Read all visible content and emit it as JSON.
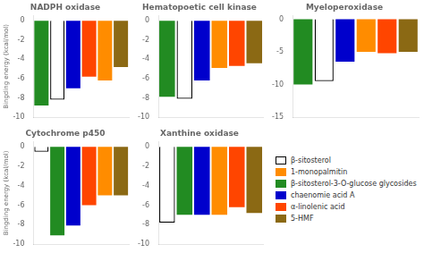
{
  "chart_data": [
    {
      "type": "bar",
      "title": "NADPH oxidase",
      "ylabel": "Bingding energy (kcal/mol)",
      "categories": [
        null,
        null,
        null,
        null,
        null,
        null
      ],
      "values": [
        -8.8,
        -8.2,
        -7.0,
        -5.8,
        -6.2,
        -4.8
      ],
      "colors": [
        "#228B22",
        "#FFFFFF",
        "#0000CC",
        "#FF4500",
        "#FF8C00",
        "#8B6914"
      ],
      "ylim": [
        -10,
        0.5
      ],
      "yticks": [
        0,
        -2,
        -4,
        -6,
        -8,
        -10
      ],
      "grid": false,
      "tick_labels": "y"
    },
    {
      "type": "bar",
      "title": "Hematopoetic cell kinase",
      "categories": [
        null,
        null,
        null,
        null,
        null,
        null
      ],
      "values": [
        -7.9,
        -8.1,
        -6.2,
        -4.9,
        -4.7,
        -4.4
      ],
      "colors": [
        "#228B22",
        "#FFFFFF",
        "#0000CC",
        "#FF8C00",
        "#FF4500",
        "#8B6914"
      ],
      "ylim": [
        -10,
        0.5
      ],
      "yticks": [
        0,
        -2,
        -4,
        -6,
        -8,
        -10
      ],
      "grid": false,
      "tick_labels": "y"
    },
    {
      "type": "bar",
      "title": "Myeloperoxidase",
      "categories": [
        null,
        null,
        null,
        null,
        null,
        null
      ],
      "values": [
        -10.0,
        -9.5,
        -6.5,
        -5.0,
        -5.2,
        -5.0
      ],
      "colors": [
        "#228B22",
        "#FFFFFF",
        "#0000CC",
        "#FF8C00",
        "#FF4500",
        "#8B6914"
      ],
      "ylim": [
        -15,
        0.5
      ],
      "yticks": [
        0,
        -5,
        -10,
        -15
      ],
      "grid": false,
      "tick_labels": "y"
    },
    {
      "type": "bar",
      "title": "Cytochrome p450",
      "ylabel": "Bingding energy (kcal/mol)",
      "categories": [
        null,
        null,
        null,
        null,
        null,
        null
      ],
      "values": [
        -0.5,
        -9.1,
        -8.1,
        -6.0,
        -5.0,
        -5.0
      ],
      "colors": [
        "#FFFFFF",
        "#228B22",
        "#0000CC",
        "#FF4500",
        "#FF8C00",
        "#8B6914"
      ],
      "ylim": [
        -10,
        0.5
      ],
      "yticks": [
        0,
        -2,
        -4,
        -6,
        -8,
        -10
      ],
      "grid": false,
      "tick_labels": "y"
    },
    {
      "type": "bar",
      "title": "Xanthine oxidase",
      "categories": [
        null,
        null,
        null,
        null,
        null,
        null
      ],
      "values": [
        -7.8,
        -7.0,
        -7.0,
        -7.0,
        -6.2,
        -6.8
      ],
      "colors": [
        "#FFFFFF",
        "#228B22",
        "#0000CC",
        "#FF8C00",
        "#FF4500",
        "#8B6914"
      ],
      "ylim": [
        -10,
        0.5
      ],
      "yticks": [
        0,
        -2,
        -4,
        -6,
        -8,
        -10
      ],
      "grid": false,
      "tick_labels": "y"
    },
    {
      "type": "legend",
      "legend": "bottom right",
      "series": [
        {
          "name": "β-sitosterol",
          "color": "#FFFFFF"
        },
        {
          "name": "1-monopalmitin",
          "color": "#FF8C00"
        },
        {
          "name": "β-sitosterol-3-O-glucose glycosides",
          "color": "#228B22"
        },
        {
          "name": "chaenomie acid A",
          "color": "#0000CC"
        },
        {
          "name": "α-linolenic acid",
          "color": "#FF4500"
        },
        {
          "name": "5-HMF",
          "color": "#8B6914"
        }
      ]
    }
  ]
}
